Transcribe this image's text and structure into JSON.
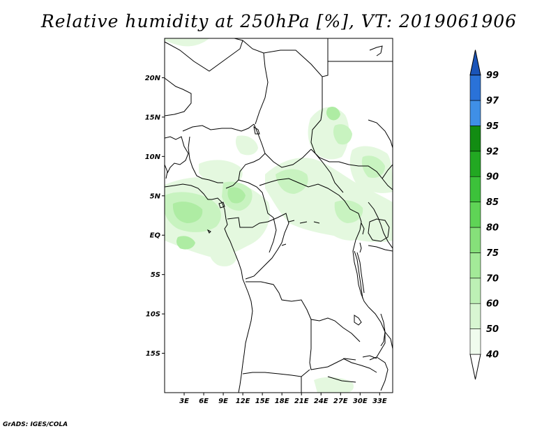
{
  "title": "Relative humidity at 250hPa [%], VT: 2019061906",
  "credit": "GrADS: IGES/COLA",
  "map": {
    "lon_range": [
      0,
      35
    ],
    "lat_range": [
      -20,
      25
    ],
    "lat_ticks": [
      {
        "value": 20,
        "label": "20N"
      },
      {
        "value": 15,
        "label": "15N"
      },
      {
        "value": 10,
        "label": "10N"
      },
      {
        "value": 5,
        "label": "5N"
      },
      {
        "value": 0,
        "label": "EQ"
      },
      {
        "value": -5,
        "label": "5S"
      },
      {
        "value": -10,
        "label": "10S"
      },
      {
        "value": -15,
        "label": "15S"
      }
    ],
    "lon_ticks": [
      {
        "value": 3,
        "label": "3E"
      },
      {
        "value": 6,
        "label": "6E"
      },
      {
        "value": 9,
        "label": "9E"
      },
      {
        "value": 12,
        "label": "12E"
      },
      {
        "value": 15,
        "label": "15E"
      },
      {
        "value": 18,
        "label": "18E"
      },
      {
        "value": 21,
        "label": "21E"
      },
      {
        "value": 24,
        "label": "24E"
      },
      {
        "value": 27,
        "label": "27E"
      },
      {
        "value": 30,
        "label": "30E"
      },
      {
        "value": 33,
        "label": "33E"
      }
    ]
  },
  "colorbar": {
    "levels": [
      {
        "label": "40",
        "color": "#f0fcee"
      },
      {
        "label": "50",
        "color": "#d8f6d2"
      },
      {
        "label": "60",
        "color": "#bdf0b5"
      },
      {
        "label": "70",
        "color": "#a3ea98"
      },
      {
        "label": "75",
        "color": "#86e07a"
      },
      {
        "label": "80",
        "color": "#5fd456"
      },
      {
        "label": "85",
        "color": "#3cc23a"
      },
      {
        "label": "90",
        "color": "#22a822"
      },
      {
        "label": "92",
        "color": "#128c12"
      },
      {
        "label": "95",
        "color": "#3f8fe6"
      },
      {
        "label": "97",
        "color": "#2a72d8"
      },
      {
        "label": "99",
        "color": "#1a54b8"
      }
    ],
    "under_color": "#ffffff",
    "over_color": "#1a54b8"
  }
}
